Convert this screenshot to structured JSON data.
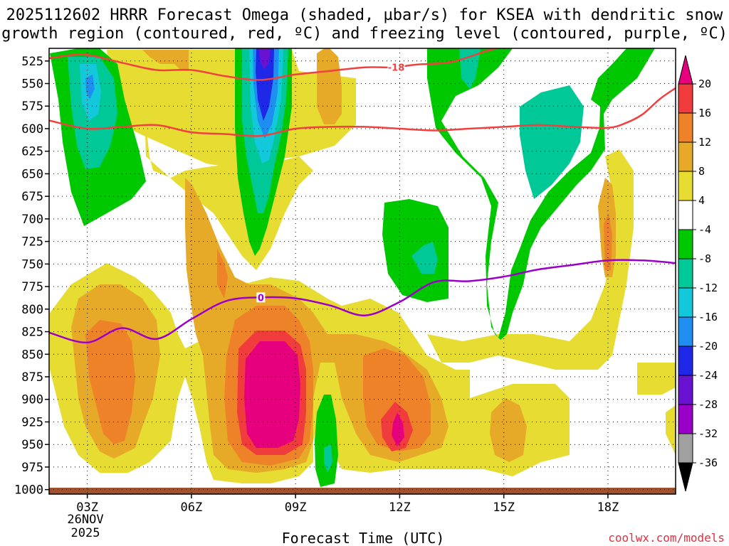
{
  "chart_data": {
    "type": "heatmap",
    "title_line1": "2025112602 HRRR Forecast Omega (shaded, µbar/s) for KSEA with dendritic snow",
    "title_line2": "growth region (contoured, red, ºC) and freezing level (contoured, purple, ºC)",
    "xlabel": "Forecast Time (UTC)",
    "credit": "coolwx.com/models",
    "date_label_line1": "26NOV",
    "date_label_line2": "2025",
    "x_ticks": [
      {
        "hour": 3,
        "label": "03Z"
      },
      {
        "hour": 6,
        "label": "06Z"
      },
      {
        "hour": 9,
        "label": "09Z"
      },
      {
        "hour": 12,
        "label": "12Z"
      },
      {
        "hour": 15,
        "label": "15Z"
      },
      {
        "hour": 18,
        "label": "18Z"
      }
    ],
    "xlim": [
      1.9,
      19.95
    ],
    "ylim_hPa": [
      1005,
      511
    ],
    "y_ticks": [
      "525",
      "550",
      "575",
      "600",
      "625",
      "650",
      "675",
      "700",
      "725",
      "750",
      "775",
      "800",
      "825",
      "850",
      "875",
      "900",
      "925",
      "950",
      "975",
      "1000"
    ],
    "colorbar": {
      "levels": [
        -36,
        -32,
        -28,
        -24,
        -20,
        -16,
        -12,
        -8,
        -4,
        4,
        8,
        12,
        16,
        20
      ],
      "colors": [
        "#000000",
        "#a0a0a0",
        "#9b00c8",
        "#6a12d2",
        "#1e28e6",
        "#1e8ef0",
        "#14c8dc",
        "#00c896",
        "#00c800",
        "#ffffff",
        "#e6dc32",
        "#e6aa28",
        "#ee8228",
        "#f03c3c",
        "#e6007e"
      ]
    },
    "dendritic_contour": {
      "color": "#f04040",
      "label": "-18",
      "upper": [
        [
          1.9,
          522
        ],
        [
          2.9,
          518
        ],
        [
          4.0,
          527
        ],
        [
          5.0,
          535
        ],
        [
          6.0,
          535
        ],
        [
          7.0,
          542
        ],
        [
          8.0,
          546
        ],
        [
          9.0,
          540
        ],
        [
          10.0,
          536
        ],
        [
          11.0,
          532
        ],
        [
          11.8,
          532
        ],
        [
          12.5,
          529
        ],
        [
          13.5,
          526
        ],
        [
          14.5,
          514
        ],
        [
          15.0,
          509
        ]
      ],
      "lower": [
        [
          1.9,
          591
        ],
        [
          3.0,
          600
        ],
        [
          4.0,
          598
        ],
        [
          5.0,
          596
        ],
        [
          6.0,
          604
        ],
        [
          7.0,
          606
        ],
        [
          8.0,
          608
        ],
        [
          9.0,
          600
        ],
        [
          10.0,
          598
        ],
        [
          11.0,
          598
        ],
        [
          12.0,
          600
        ],
        [
          13.0,
          602
        ],
        [
          14.0,
          600
        ],
        [
          15.0,
          598
        ],
        [
          16.0,
          596
        ],
        [
          17.0,
          598
        ],
        [
          18.0,
          599
        ],
        [
          18.5,
          594
        ],
        [
          19.0,
          584
        ],
        [
          19.5,
          567
        ],
        [
          19.95,
          555
        ]
      ]
    },
    "freezing_level": {
      "color": "#9b00c8",
      "label": "0",
      "points": [
        [
          1.9,
          826
        ],
        [
          3.0,
          837
        ],
        [
          4.0,
          821
        ],
        [
          5.0,
          833
        ],
        [
          6.0,
          811
        ],
        [
          7.0,
          791
        ],
        [
          8.0,
          787
        ],
        [
          9.0,
          788
        ],
        [
          10.0,
          796
        ],
        [
          11.0,
          807
        ],
        [
          12.0,
          792
        ],
        [
          13.0,
          770
        ],
        [
          14.0,
          769
        ],
        [
          15.0,
          764
        ],
        [
          16.0,
          756
        ],
        [
          17.0,
          751
        ],
        [
          18.0,
          746
        ],
        [
          19.0,
          746
        ],
        [
          19.95,
          749
        ]
      ]
    },
    "terrain": {
      "color": "#a0522d"
    }
  }
}
